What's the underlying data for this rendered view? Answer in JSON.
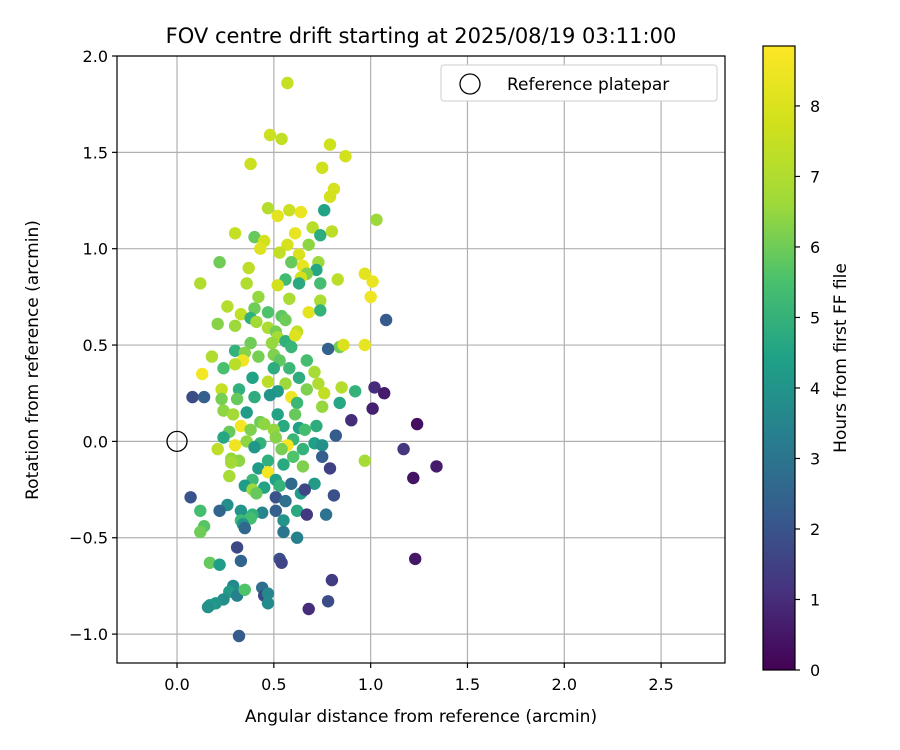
{
  "chart_data": {
    "type": "scatter",
    "title": "FOV centre drift starting at 2025/08/19 03:11:00",
    "xlabel": "Angular distance from reference (arcmin)",
    "ylabel": "Rotation from reference (arcmin)",
    "xlim": [
      -0.31,
      2.83
    ],
    "ylim": [
      -1.15,
      2.0
    ],
    "xticks": [
      0.0,
      0.5,
      1.0,
      1.5,
      2.0,
      2.5
    ],
    "xtick_labels": [
      "0.0",
      "0.5",
      "1.0",
      "1.5",
      "2.0",
      "2.5"
    ],
    "yticks": [
      -1.0,
      -0.5,
      0.0,
      0.5,
      1.0,
      1.5,
      2.0
    ],
    "ytick_labels": [
      "−1.0",
      "−0.5",
      "0.0",
      "0.5",
      "1.0",
      "1.5",
      "2.0"
    ],
    "grid": true,
    "colormap": "viridis",
    "colorbar": {
      "label": "Hours from first FF file",
      "min": 0,
      "max": 8.85,
      "ticks": [
        0,
        1,
        2,
        3,
        4,
        5,
        6,
        7,
        8
      ],
      "tick_labels": [
        "0",
        "1",
        "2",
        "3",
        "4",
        "5",
        "6",
        "7",
        "8"
      ]
    },
    "legend": {
      "position": "top-right",
      "entries": [
        {
          "label": "Reference platepar",
          "marker": "open-circle"
        }
      ]
    },
    "reference_point": {
      "x": 0.0,
      "y": 0.0
    },
    "points": [
      [
        0.57,
        1.86,
        7.5
      ],
      [
        0.48,
        1.59,
        7.6
      ],
      [
        0.54,
        1.57,
        7.4
      ],
      [
        0.79,
        1.54,
        7.7
      ],
      [
        0.87,
        1.48,
        7.8
      ],
      [
        0.38,
        1.44,
        7.6
      ],
      [
        0.75,
        1.42,
        7.7
      ],
      [
        0.81,
        1.31,
        7.9
      ],
      [
        0.79,
        1.27,
        7.8
      ],
      [
        0.47,
        1.21,
        7.1
      ],
      [
        0.58,
        1.2,
        7.6
      ],
      [
        0.64,
        1.19,
        8.4
      ],
      [
        0.52,
        1.17,
        8.2
      ],
      [
        0.76,
        1.2,
        4.5
      ],
      [
        1.03,
        1.15,
        6.6
      ],
      [
        0.7,
        1.11,
        7.2
      ],
      [
        0.3,
        1.08,
        7.5
      ],
      [
        0.4,
        1.06,
        5.9
      ],
      [
        0.61,
        1.08,
        8.3
      ],
      [
        0.74,
        1.07,
        4.8
      ],
      [
        0.8,
        1.09,
        7.3
      ],
      [
        0.45,
        1.04,
        7.8
      ],
      [
        0.57,
        1.02,
        7.9
      ],
      [
        0.68,
        1.02,
        6.4
      ],
      [
        0.43,
        1.0,
        8.1
      ],
      [
        0.53,
        0.98,
        7.4
      ],
      [
        0.63,
        0.97,
        8.0
      ],
      [
        0.22,
        0.93,
        6.0
      ],
      [
        0.59,
        0.93,
        5.9
      ],
      [
        0.73,
        0.93,
        6.6
      ],
      [
        0.65,
        0.91,
        8.3
      ],
      [
        0.37,
        0.9,
        7.3
      ],
      [
        0.72,
        0.89,
        4.6
      ],
      [
        0.97,
        0.87,
        8.2
      ],
      [
        0.67,
        0.87,
        6.2
      ],
      [
        0.56,
        0.84,
        5.3
      ],
      [
        0.64,
        0.85,
        7.8
      ],
      [
        0.83,
        0.84,
        7.3
      ],
      [
        0.12,
        0.82,
        7.0
      ],
      [
        0.36,
        0.82,
        7.0
      ],
      [
        0.52,
        0.81,
        7.8
      ],
      [
        0.63,
        0.82,
        4.7
      ],
      [
        1.01,
        0.83,
        8.4
      ],
      [
        0.74,
        0.82,
        5.4
      ],
      [
        0.42,
        0.75,
        6.5
      ],
      [
        0.58,
        0.74,
        6.9
      ],
      [
        0.74,
        0.73,
        6.9
      ],
      [
        1.0,
        0.75,
        8.5
      ],
      [
        0.26,
        0.7,
        7.1
      ],
      [
        0.4,
        0.69,
        6.0
      ],
      [
        0.33,
        0.66,
        7.4
      ],
      [
        0.47,
        0.67,
        5.6
      ],
      [
        0.54,
        0.65,
        5.8
      ],
      [
        0.68,
        0.67,
        8.2
      ],
      [
        0.74,
        0.68,
        5.0
      ],
      [
        0.38,
        0.64,
        4.9
      ],
      [
        0.56,
        0.63,
        6.0
      ],
      [
        0.41,
        0.62,
        6.7
      ],
      [
        0.21,
        0.61,
        6.3
      ],
      [
        0.3,
        0.6,
        6.6
      ],
      [
        0.47,
        0.59,
        6.9
      ],
      [
        0.51,
        0.57,
        6.1
      ],
      [
        0.62,
        0.57,
        7.4
      ],
      [
        1.08,
        0.63,
        2.2
      ],
      [
        0.52,
        0.54,
        6.8
      ],
      [
        0.56,
        0.52,
        4.9
      ],
      [
        0.61,
        0.55,
        8.1
      ],
      [
        0.38,
        0.51,
        6.0
      ],
      [
        0.49,
        0.51,
        6.5
      ],
      [
        0.59,
        0.49,
        5.1
      ],
      [
        0.84,
        0.49,
        6.0
      ],
      [
        0.86,
        0.5,
        8.0
      ],
      [
        0.78,
        0.48,
        2.4
      ],
      [
        0.97,
        0.5,
        8.3
      ],
      [
        0.3,
        0.47,
        5.0
      ],
      [
        0.35,
        0.46,
        6.3
      ],
      [
        0.42,
        0.44,
        6.1
      ],
      [
        0.5,
        0.45,
        6.2
      ],
      [
        0.18,
        0.44,
        7.0
      ],
      [
        0.34,
        0.42,
        8.5
      ],
      [
        0.53,
        0.42,
        5.8
      ],
      [
        0.67,
        0.42,
        5.4
      ],
      [
        0.24,
        0.38,
        5.5
      ],
      [
        0.3,
        0.4,
        7.2
      ],
      [
        0.5,
        0.38,
        4.8
      ],
      [
        0.58,
        0.38,
        5.2
      ],
      [
        0.71,
        0.36,
        6.8
      ],
      [
        0.13,
        0.35,
        8.6
      ],
      [
        0.39,
        0.33,
        4.5
      ],
      [
        0.47,
        0.31,
        7.3
      ],
      [
        0.63,
        0.33,
        4.8
      ],
      [
        0.56,
        0.3,
        6.6
      ],
      [
        0.73,
        0.3,
        7.0
      ],
      [
        0.23,
        0.27,
        7.5
      ],
      [
        0.32,
        0.27,
        4.9
      ],
      [
        0.85,
        0.28,
        7.1
      ],
      [
        1.02,
        0.28,
        1.0
      ],
      [
        1.07,
        0.25,
        0.6
      ],
      [
        0.52,
        0.26,
        4.2
      ],
      [
        0.67,
        0.27,
        6.2
      ],
      [
        0.76,
        0.25,
        7.4
      ],
      [
        0.92,
        0.26,
        5.0
      ],
      [
        0.08,
        0.23,
        1.8
      ],
      [
        0.14,
        0.23,
        2.3
      ],
      [
        0.23,
        0.22,
        6.1
      ],
      [
        0.31,
        0.22,
        5.9
      ],
      [
        0.4,
        0.23,
        4.8
      ],
      [
        0.48,
        0.24,
        4.0
      ],
      [
        0.59,
        0.23,
        8.5
      ],
      [
        0.62,
        0.2,
        5.2
      ],
      [
        0.75,
        0.18,
        6.5
      ],
      [
        0.84,
        0.2,
        4.6
      ],
      [
        0.24,
        0.16,
        6.4
      ],
      [
        0.36,
        0.15,
        4.3
      ],
      [
        0.29,
        0.14,
        6.7
      ],
      [
        0.52,
        0.14,
        4.5
      ],
      [
        0.61,
        0.14,
        5.9
      ],
      [
        1.01,
        0.17,
        0.7
      ],
      [
        0.9,
        0.11,
        1.0
      ],
      [
        0.43,
        0.1,
        6.0
      ],
      [
        0.33,
        0.08,
        8.6
      ],
      [
        0.45,
        0.09,
        6.4
      ],
      [
        0.55,
        0.08,
        4.7
      ],
      [
        0.63,
        0.07,
        4.4
      ],
      [
        0.72,
        0.08,
        4.8
      ],
      [
        1.24,
        0.09,
        0.3
      ],
      [
        0.27,
        0.05,
        5.9
      ],
      [
        0.38,
        0.06,
        6.2
      ],
      [
        0.5,
        0.06,
        6.5
      ],
      [
        0.66,
        0.06,
        5.4
      ],
      [
        0.82,
        0.03,
        2.2
      ],
      [
        0.24,
        0.02,
        4.6
      ],
      [
        0.36,
        0.0,
        6.4
      ],
      [
        0.51,
        0.02,
        6.3
      ],
      [
        0.6,
        0.01,
        5.1
      ],
      [
        0.71,
        -0.01,
        4.4
      ],
      [
        0.3,
        -0.02,
        8.5
      ],
      [
        0.43,
        -0.01,
        5.0
      ],
      [
        0.57,
        -0.02,
        8.6
      ],
      [
        0.75,
        -0.02,
        3.9
      ],
      [
        0.21,
        -0.04,
        7.3
      ],
      [
        0.4,
        -0.03,
        4.1
      ],
      [
        0.54,
        -0.04,
        6.1
      ],
      [
        0.65,
        -0.04,
        5.0
      ],
      [
        1.17,
        -0.04,
        1.2
      ],
      [
        0.28,
        -0.09,
        6.5
      ],
      [
        0.47,
        -0.1,
        4.9
      ],
      [
        0.32,
        -0.1,
        6.4
      ],
      [
        0.6,
        -0.08,
        5.6
      ],
      [
        0.75,
        -0.08,
        2.3
      ],
      [
        0.97,
        -0.1,
        6.8
      ],
      [
        0.28,
        -0.11,
        6.7
      ],
      [
        0.42,
        -0.14,
        4.2
      ],
      [
        0.55,
        -0.12,
        4.7
      ],
      [
        0.65,
        -0.13,
        6.2
      ],
      [
        0.79,
        -0.14,
        1.5
      ],
      [
        1.34,
        -0.13,
        0.6
      ],
      [
        0.47,
        -0.16,
        8.6
      ],
      [
        0.27,
        -0.18,
        6.8
      ],
      [
        0.39,
        -0.2,
        5.2
      ],
      [
        0.51,
        -0.2,
        4.4
      ],
      [
        0.59,
        -0.22,
        2.6
      ],
      [
        0.71,
        -0.22,
        4.2
      ],
      [
        1.22,
        -0.19,
        0.4
      ],
      [
        0.35,
        -0.23,
        4.3
      ],
      [
        0.45,
        -0.24,
        4.5
      ],
      [
        0.53,
        -0.23,
        5.0
      ],
      [
        0.39,
        -0.25,
        6.6
      ],
      [
        0.41,
        -0.27,
        5.9
      ],
      [
        0.64,
        -0.27,
        4.3
      ],
      [
        0.66,
        -0.25,
        1.6
      ],
      [
        0.51,
        -0.29,
        2.0
      ],
      [
        0.07,
        -0.29,
        2.0
      ],
      [
        0.81,
        -0.28,
        1.9
      ],
      [
        0.56,
        -0.31,
        2.8
      ],
      [
        0.26,
        -0.33,
        3.8
      ],
      [
        0.33,
        -0.36,
        4.0
      ],
      [
        0.22,
        -0.36,
        2.5
      ],
      [
        0.44,
        -0.37,
        3.5
      ],
      [
        0.39,
        -0.38,
        5.0
      ],
      [
        0.38,
        -0.4,
        5.4
      ],
      [
        0.12,
        -0.36,
        5.4
      ],
      [
        0.51,
        -0.36,
        2.3
      ],
      [
        0.62,
        -0.36,
        4.7
      ],
      [
        0.67,
        -0.38,
        1.3
      ],
      [
        0.77,
        -0.38,
        2.9
      ],
      [
        0.33,
        -0.41,
        5.2
      ],
      [
        0.34,
        -0.43,
        4.0
      ],
      [
        0.35,
        -0.45,
        2.6
      ],
      [
        0.55,
        -0.41,
        4.0
      ],
      [
        0.14,
        -0.44,
        5.7
      ],
      [
        0.12,
        -0.47,
        6.0
      ],
      [
        0.55,
        -0.47,
        3.0
      ],
      [
        0.62,
        -0.5,
        3.4
      ],
      [
        0.31,
        -0.55,
        1.7
      ],
      [
        0.33,
        -0.62,
        2.5
      ],
      [
        0.53,
        -0.61,
        1.9
      ],
      [
        0.54,
        -0.63,
        1.6
      ],
      [
        0.17,
        -0.63,
        5.9
      ],
      [
        0.22,
        -0.64,
        4.3
      ],
      [
        1.23,
        -0.61,
        0.5
      ],
      [
        0.29,
        -0.75,
        3.7
      ],
      [
        0.27,
        -0.78,
        4.2
      ],
      [
        0.31,
        -0.8,
        3.4
      ],
      [
        0.35,
        -0.77,
        5.6
      ],
      [
        0.44,
        -0.76,
        2.8
      ],
      [
        0.45,
        -0.8,
        1.7
      ],
      [
        0.47,
        -0.79,
        3.5
      ],
      [
        0.8,
        -0.72,
        1.4
      ],
      [
        0.24,
        -0.82,
        3.8
      ],
      [
        0.2,
        -0.84,
        4.0
      ],
      [
        0.17,
        -0.85,
        4.3
      ],
      [
        0.16,
        -0.86,
        3.9
      ],
      [
        0.47,
        -0.84,
        3.7
      ],
      [
        0.68,
        -0.87,
        1.0
      ],
      [
        0.78,
        -0.83,
        1.8
      ],
      [
        0.32,
        -1.01,
        2.2
      ]
    ]
  }
}
